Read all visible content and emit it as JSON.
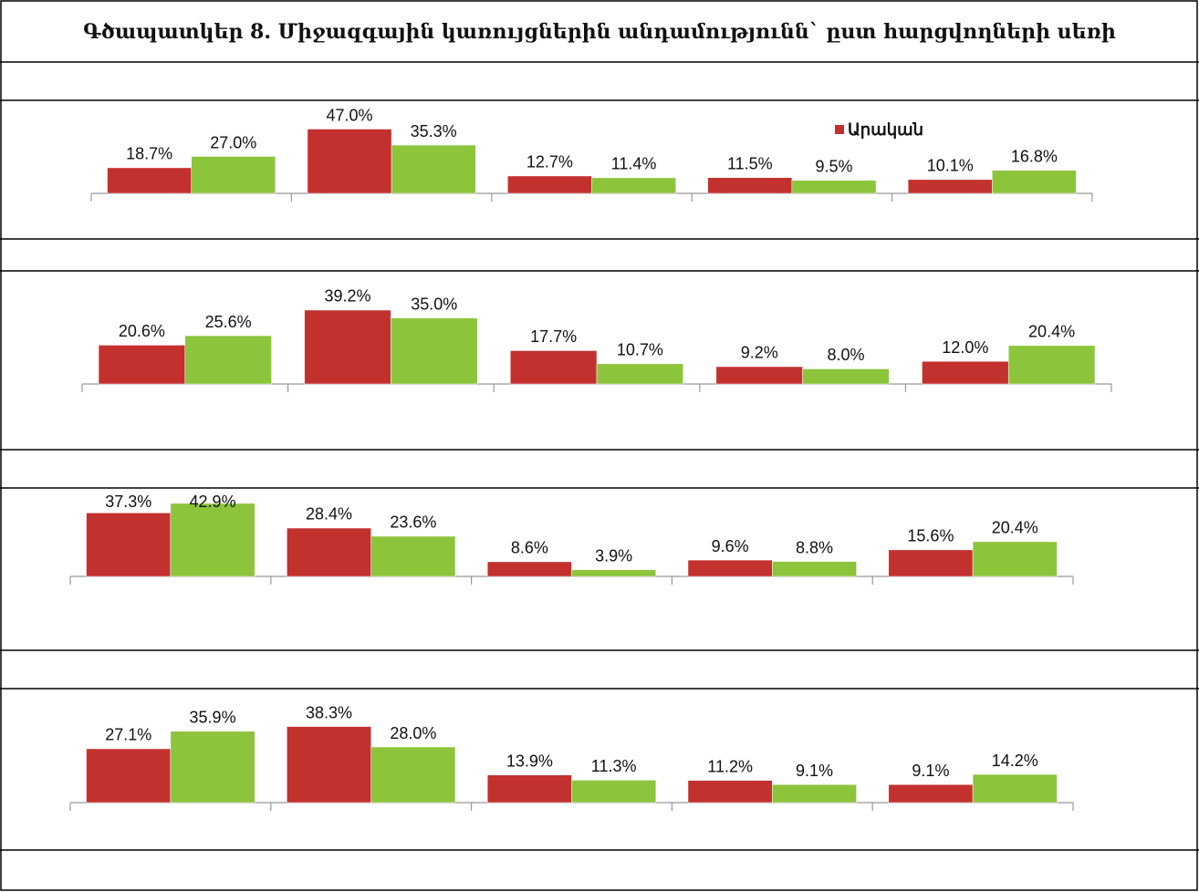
{
  "title": "Գծապատկեր 8. Միջազգային կառույցներին անդամությունն` ըստ հարցվողների սեռի",
  "chart_data": [
    {
      "type": "bar",
      "ylim": [
        0,
        60
      ],
      "legend": "top-right",
      "series": [
        {
          "name": "Արական",
          "color": "#c3312e",
          "values": [
            18.7,
            47.0,
            12.7,
            11.5,
            10.1
          ],
          "value_labels": [
            "18.7%",
            "47.0%",
            "12.7%",
            "11.5%",
            "10.1%"
          ]
        },
        {
          "color": "#8cc43c",
          "values": [
            27.0,
            35.3,
            11.4,
            9.5,
            16.8
          ],
          "value_labels": [
            "27.0%",
            "35.3%",
            "11.4%",
            "9.5%",
            "16.8%"
          ]
        }
      ]
    },
    {
      "type": "bar",
      "ylim": [
        0,
        45
      ],
      "series": [
        {
          "color": "#c3312e",
          "values": [
            20.6,
            39.2,
            17.7,
            9.2,
            12.0
          ],
          "value_labels": [
            "20.6%",
            "39.2%",
            "17.7%",
            "9.2%",
            "12.0%"
          ]
        },
        {
          "color": "#8cc43c",
          "values": [
            25.6,
            35.0,
            10.7,
            8.0,
            20.4
          ],
          "value_labels": [
            "25.6%",
            "35.0%",
            "10.7%",
            "8.0%",
            "20.4%"
          ]
        }
      ]
    },
    {
      "type": "bar",
      "ylim": [
        0,
        45
      ],
      "series": [
        {
          "color": "#c3312e",
          "values": [
            37.3,
            28.4,
            8.6,
            9.6,
            15.6
          ],
          "value_labels": [
            "37.3%",
            "28.4%",
            "8.6%",
            "9.6%",
            "15.6%"
          ]
        },
        {
          "color": "#8cc43c",
          "values": [
            42.9,
            23.6,
            3.9,
            8.8,
            20.4
          ],
          "value_labels": [
            "42.9%",
            "23.6%",
            "3.9%",
            "8.8%",
            "20.4%"
          ]
        }
      ]
    },
    {
      "type": "bar",
      "ylim": [
        0,
        45
      ],
      "series": [
        {
          "color": "#c3312e",
          "values": [
            27.1,
            38.3,
            13.9,
            11.2,
            9.1
          ],
          "value_labels": [
            "27.1%",
            "38.3%",
            "13.9%",
            "11.2%",
            "9.1%"
          ]
        },
        {
          "color": "#8cc43c",
          "values": [
            35.9,
            28.0,
            11.3,
            9.1,
            14.2
          ],
          "value_labels": [
            "35.9%",
            "28.0%",
            "11.3%",
            "9.1%",
            "14.2%"
          ]
        }
      ]
    }
  ]
}
